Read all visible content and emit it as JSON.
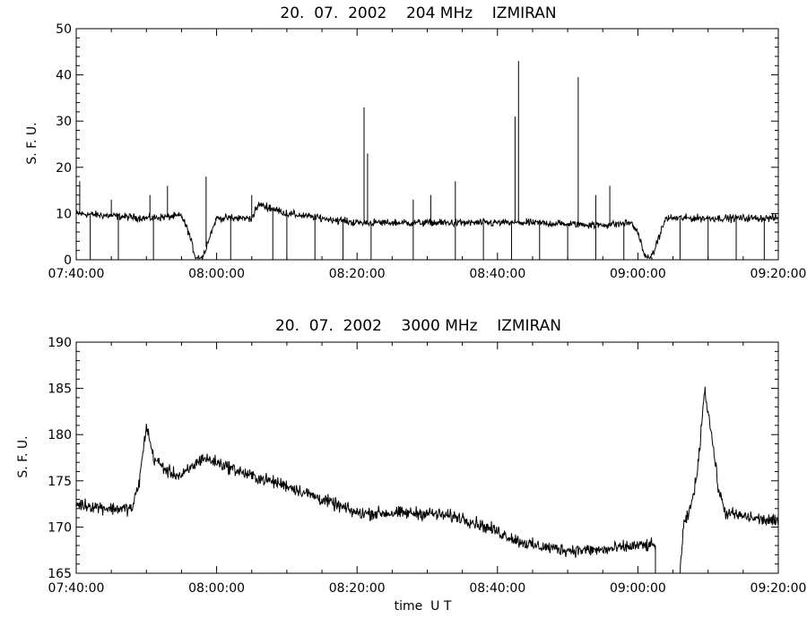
{
  "chart_data": [
    {
      "type": "line",
      "title": "20.  07.  2002    204 MHz    IZMIRAN",
      "ylabel": "S. F. U.",
      "xlabel": "",
      "xlim": [
        "07:40:00",
        "09:20:00"
      ],
      "ylim": [
        0,
        50
      ],
      "x_tick_labels": [
        "07:40:00",
        "08:00:00",
        "08:20:00",
        "08:40:00",
        "09:00:00",
        "09:20:00"
      ],
      "y_tick_labels": [
        "0",
        "10",
        "20",
        "30",
        "40",
        "50"
      ],
      "series": [
        {
          "baseline": [
            {
              "t": "07:40:00",
              "v": 10
            },
            {
              "t": "07:50:00",
              "v": 9
            },
            {
              "t": "07:55:00",
              "v": 9.5
            },
            {
              "t": "07:56:00",
              "v": 6
            },
            {
              "t": "07:57:00",
              "v": 0.5
            },
            {
              "t": "07:58:00",
              "v": 0.5
            },
            {
              "t": "07:59:00",
              "v": 5
            },
            {
              "t": "08:00:00",
              "v": 9
            },
            {
              "t": "08:05:00",
              "v": 9
            },
            {
              "t": "08:06:00",
              "v": 12
            },
            {
              "t": "08:10:00",
              "v": 10
            },
            {
              "t": "08:15:00",
              "v": 9
            },
            {
              "t": "08:20:00",
              "v": 8
            },
            {
              "t": "08:25:00",
              "v": 8
            },
            {
              "t": "08:35:00",
              "v": 8
            },
            {
              "t": "08:45:00",
              "v": 8
            },
            {
              "t": "08:55:00",
              "v": 7.5
            },
            {
              "t": "08:59:00",
              "v": 8
            },
            {
              "t": "09:00:00",
              "v": 6
            },
            {
              "t": "09:01:00",
              "v": 0.5
            },
            {
              "t": "09:02:00",
              "v": 0.5
            },
            {
              "t": "09:03:00",
              "v": 5
            },
            {
              "t": "09:04:00",
              "v": 9
            },
            {
              "t": "09:20:00",
              "v": 9
            }
          ],
          "noise": 0.7,
          "spikes": [
            {
              "t": "07:40:30",
              "v": 17
            },
            {
              "t": "07:45:00",
              "v": 13
            },
            {
              "t": "07:50:30",
              "v": 14
            },
            {
              "t": "07:53:00",
              "v": 16
            },
            {
              "t": "07:58:30",
              "v": 18
            },
            {
              "t": "08:05:00",
              "v": 14
            },
            {
              "t": "08:21:00",
              "v": 33
            },
            {
              "t": "08:21:30",
              "v": 23
            },
            {
              "t": "08:28:00",
              "v": 13
            },
            {
              "t": "08:30:30",
              "v": 14
            },
            {
              "t": "08:34:00",
              "v": 17
            },
            {
              "t": "08:42:30",
              "v": 31
            },
            {
              "t": "08:43:00",
              "v": 43
            },
            {
              "t": "08:51:30",
              "v": 39.5
            },
            {
              "t": "08:54:00",
              "v": 14
            },
            {
              "t": "08:56:00",
              "v": 16
            }
          ],
          "dropouts": [
            "07:42:00",
            "07:46:00",
            "07:51:00",
            "07:58:00",
            "08:02:00",
            "08:08:00",
            "08:10:00",
            "08:14:00",
            "08:18:00",
            "08:22:00",
            "08:28:00",
            "08:34:00",
            "08:38:00",
            "08:42:00",
            "08:46:00",
            "08:50:00",
            "08:54:00",
            "08:58:00",
            "09:02:00",
            "09:06:00",
            "09:10:00",
            "09:14:00",
            "09:18:00"
          ]
        }
      ]
    },
    {
      "type": "line",
      "title": "20.  07.  2002    3000 MHz    IZMIRAN",
      "ylabel": "S. F. U.",
      "xlabel": "time  U T",
      "xlim": [
        "07:40:00",
        "09:20:00"
      ],
      "ylim": [
        165,
        190
      ],
      "x_tick_labels": [
        "07:40:00",
        "08:00:00",
        "08:20:00",
        "08:40:00",
        "09:00:00",
        "09:20:00"
      ],
      "y_tick_labels": [
        "165",
        "170",
        "175",
        "180",
        "185",
        "190"
      ],
      "series": [
        {
          "baseline": [
            {
              "t": "07:40:00",
              "v": 172.5
            },
            {
              "t": "07:45:00",
              "v": 172
            },
            {
              "t": "07:48:00",
              "v": 172
            },
            {
              "t": "07:49:00",
              "v": 175
            },
            {
              "t": "07:50:00",
              "v": 181
            },
            {
              "t": "07:51:00",
              "v": 177.5
            },
            {
              "t": "07:53:00",
              "v": 176
            },
            {
              "t": "07:55:00",
              "v": 175.5
            },
            {
              "t": "07:58:00",
              "v": 177.5
            },
            {
              "t": "08:00:00",
              "v": 177
            },
            {
              "t": "08:05:00",
              "v": 175.5
            },
            {
              "t": "08:10:00",
              "v": 174.5
            },
            {
              "t": "08:15:00",
              "v": 173
            },
            {
              "t": "08:20:00",
              "v": 171.5
            },
            {
              "t": "08:25:00",
              "v": 171.5
            },
            {
              "t": "08:30:00",
              "v": 171.5
            },
            {
              "t": "08:35:00",
              "v": 171
            },
            {
              "t": "08:40:00",
              "v": 169.5
            },
            {
              "t": "08:43:00",
              "v": 168.5
            },
            {
              "t": "08:45:00",
              "v": 168
            },
            {
              "t": "08:50:00",
              "v": 167.5
            },
            {
              "t": "08:55:00",
              "v": 167.5
            },
            {
              "t": "09:00:00",
              "v": 168
            },
            {
              "t": "09:02:00",
              "v": 168
            }
          ],
          "gap": [
            "09:02:30",
            "09:06:00"
          ],
          "recovery": [
            {
              "t": "09:06:00",
              "v": 165
            },
            {
              "t": "09:06:30",
              "v": 170
            },
            {
              "t": "09:07:30",
              "v": 172
            },
            {
              "t": "09:08:30",
              "v": 176
            },
            {
              "t": "09:09:30",
              "v": 185
            },
            {
              "t": "09:10:30",
              "v": 180
            },
            {
              "t": "09:11:30",
              "v": 174
            },
            {
              "t": "09:12:30",
              "v": 171.5
            },
            {
              "t": "09:20:00",
              "v": 170.5
            }
          ],
          "noise": 0.6
        }
      ]
    }
  ]
}
